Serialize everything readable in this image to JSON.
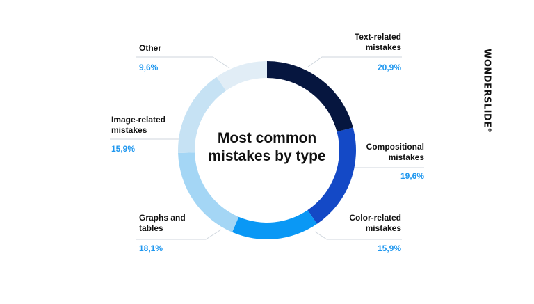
{
  "brand": {
    "name": "WONDERSLIDE",
    "mark": "®"
  },
  "chart_data": {
    "type": "pie",
    "donut": true,
    "title": "Most common\nmistakes by type",
    "categories": [
      "Text-related\nmistakes",
      "Compositional\nmistakes",
      "Color-related\nmistakes",
      "Graphs and\ntables",
      "Image-related\nmistakes",
      "Other"
    ],
    "values": [
      20.9,
      19.6,
      15.9,
      18.1,
      15.9,
      9.6
    ],
    "value_labels": [
      "20,9%",
      "19,6%",
      "15,9%",
      "18,1%",
      "15,9%",
      "9,6%"
    ],
    "colors": [
      "#06163f",
      "#1449c6",
      "#0a98f5",
      "#a4d6f5",
      "#c6e2f4",
      "#e1edf6"
    ],
    "label_color": "#1f97ef",
    "legend": "none"
  }
}
